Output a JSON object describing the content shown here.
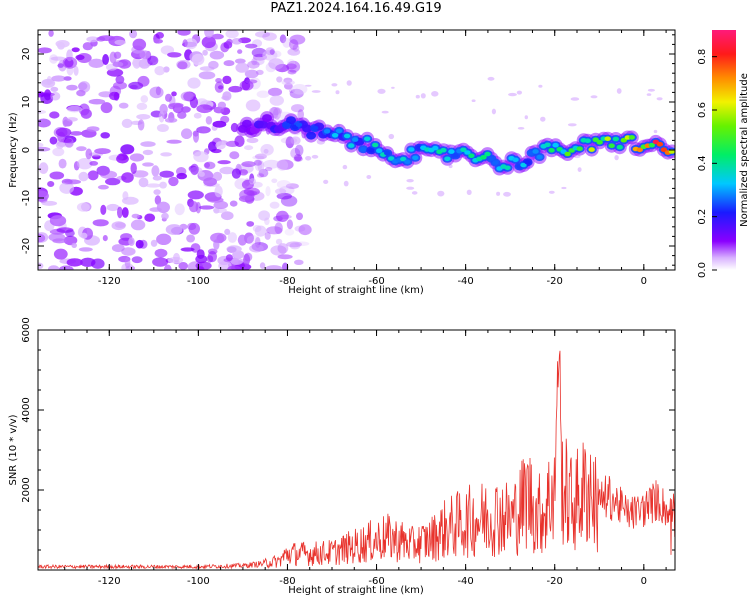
{
  "title": "PAZ1.2024.164.16.49.G19",
  "chart_data": [
    {
      "type": "heatmap",
      "xlabel": "Height of straight line (km)",
      "ylabel": "Frequency (Hz)",
      "xlim": [
        -136,
        7
      ],
      "ylim": [
        -25,
        25
      ],
      "x_ticks": [
        -120,
        -100,
        -80,
        -60,
        -40,
        -20,
        0
      ],
      "y_ticks": [
        -20,
        -10,
        0,
        10,
        20
      ],
      "colorbar": {
        "label": "Normalized spectral amplitude",
        "range": [
          0,
          0.9
        ],
        "ticks": [
          0.0,
          0.2,
          0.4,
          0.6,
          0.8
        ],
        "colormap": "rainbow (white→violet→blue→cyan→green→yellow→orange→red→magenta)"
      },
      "noise_region_x": [
        -136,
        -80
      ],
      "signal_ridge": [
        {
          "x": -90,
          "y": 5,
          "amp": 0.12
        },
        {
          "x": -85,
          "y": 5.5,
          "amp": 0.18
        },
        {
          "x": -80,
          "y": 5,
          "amp": 0.22
        },
        {
          "x": -75,
          "y": 4,
          "amp": 0.28
        },
        {
          "x": -70,
          "y": 3,
          "amp": 0.3
        },
        {
          "x": -65,
          "y": 2,
          "amp": 0.32
        },
        {
          "x": -60,
          "y": 0,
          "amp": 0.36
        },
        {
          "x": -55,
          "y": -1,
          "amp": 0.38
        },
        {
          "x": -50,
          "y": -1,
          "amp": 0.36
        },
        {
          "x": -45,
          "y": -1,
          "amp": 0.38
        },
        {
          "x": -40,
          "y": 0,
          "amp": 0.42
        },
        {
          "x": -35,
          "y": -2,
          "amp": 0.38
        },
        {
          "x": -30,
          "y": -3,
          "amp": 0.34
        },
        {
          "x": -25,
          "y": -1,
          "amp": 0.36
        },
        {
          "x": -20,
          "y": 0,
          "amp": 0.42
        },
        {
          "x": -15,
          "y": 0.5,
          "amp": 0.55
        },
        {
          "x": -10,
          "y": 1,
          "amp": 0.6
        },
        {
          "x": -5,
          "y": 2,
          "amp": 0.65
        },
        {
          "x": 0,
          "y": 1,
          "amp": 0.7
        },
        {
          "x": 5,
          "y": 0,
          "amp": 0.85
        }
      ]
    },
    {
      "type": "line",
      "xlabel": "Height of straight line (km)",
      "ylabel": "SNR (10 * v/v)",
      "xlim": [
        -136,
        7
      ],
      "ylim": [
        0,
        6000
      ],
      "x_ticks": [
        -120,
        -100,
        -80,
        -60,
        -40,
        -20,
        0
      ],
      "y_ticks": [
        2000,
        4000,
        6000
      ],
      "series": [
        {
          "color": "#e8322c",
          "envelope": [
            {
              "x": -136,
              "y": 150
            },
            {
              "x": -120,
              "y": 150
            },
            {
              "x": -100,
              "y": 150
            },
            {
              "x": -90,
              "y": 200
            },
            {
              "x": -82,
              "y": 350
            },
            {
              "x": -80,
              "y": 650
            },
            {
              "x": -75,
              "y": 650
            },
            {
              "x": -70,
              "y": 700
            },
            {
              "x": -66,
              "y": 900
            },
            {
              "x": -62,
              "y": 1100
            },
            {
              "x": -58,
              "y": 1300
            },
            {
              "x": -55,
              "y": 1200
            },
            {
              "x": -52,
              "y": 1000
            },
            {
              "x": -48,
              "y": 1200
            },
            {
              "x": -45,
              "y": 1600
            },
            {
              "x": -42,
              "y": 1800
            },
            {
              "x": -38,
              "y": 2000
            },
            {
              "x": -35,
              "y": 2100
            },
            {
              "x": -32,
              "y": 2200
            },
            {
              "x": -30,
              "y": 2000
            },
            {
              "x": -28,
              "y": 2400
            },
            {
              "x": -26,
              "y": 3000
            },
            {
              "x": -24,
              "y": 2200
            },
            {
              "x": -22,
              "y": 2400
            },
            {
              "x": -20,
              "y": 3500
            },
            {
              "x": -19,
              "y": 5000
            },
            {
              "x": -18,
              "y": 3200
            },
            {
              "x": -16,
              "y": 2600
            },
            {
              "x": -14,
              "y": 3000
            },
            {
              "x": -12,
              "y": 3300
            },
            {
              "x": -10,
              "y": 2200
            },
            {
              "x": -8,
              "y": 2300
            },
            {
              "x": -6,
              "y": 2100
            },
            {
              "x": -4,
              "y": 1800
            },
            {
              "x": -2,
              "y": 1800
            },
            {
              "x": 0,
              "y": 1900
            },
            {
              "x": 3,
              "y": 2200
            },
            {
              "x": 5,
              "y": 1900
            },
            {
              "x": 7,
              "y": 1900
            }
          ]
        }
      ]
    }
  ]
}
